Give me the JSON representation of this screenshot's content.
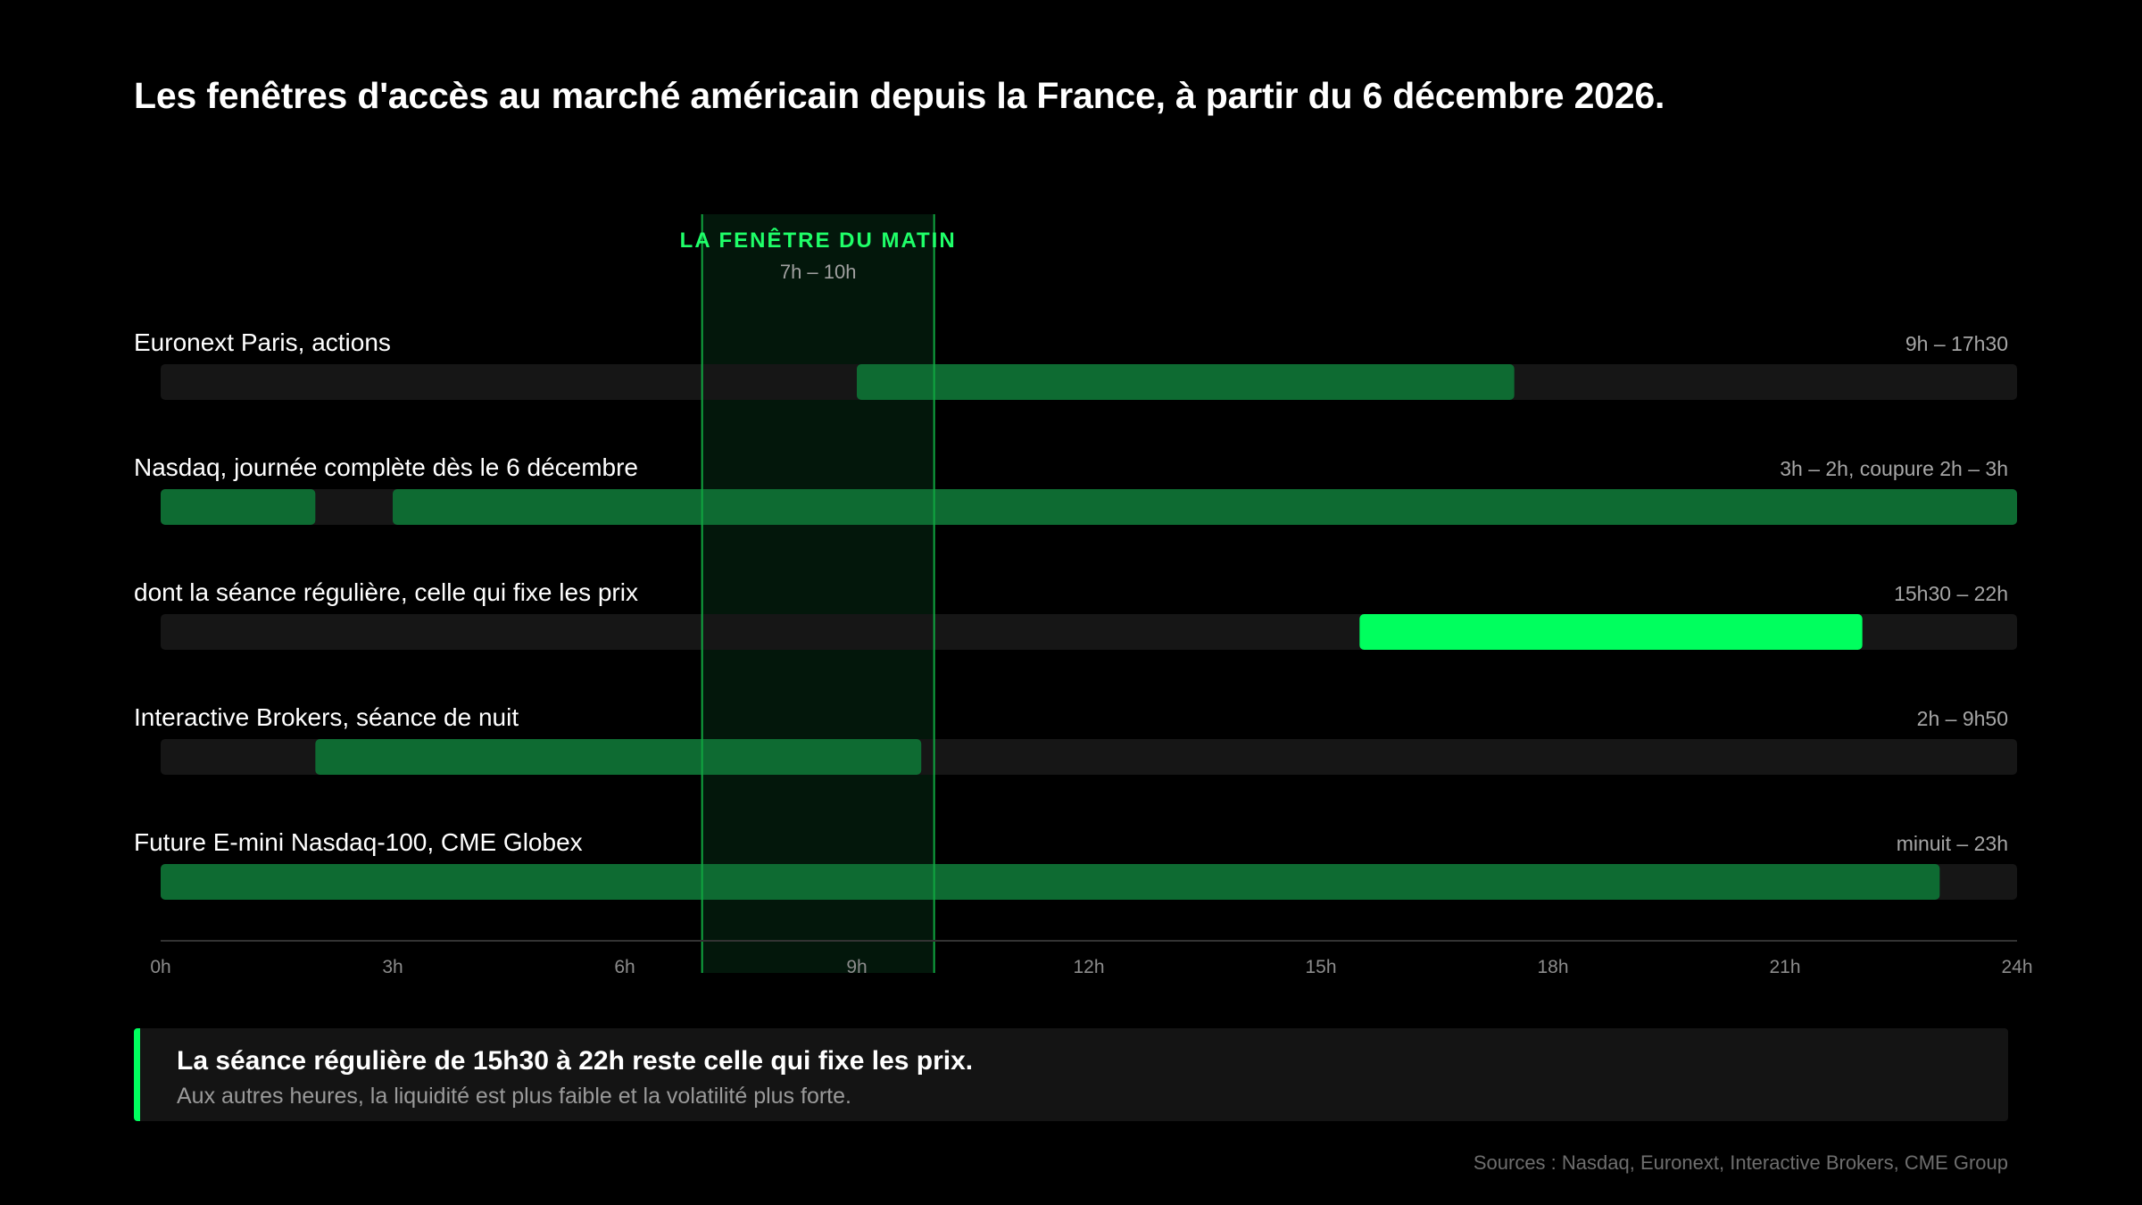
{
  "title": "Les fenêtres d'accès au marché américain depuis la France, à partir du 6 décembre 2026.",
  "colors": {
    "background": "#000000",
    "track": "#161616",
    "bar": "#0e6b32",
    "bar_highlight": "#00ff5e",
    "window_fill": "#03170b",
    "window_line": "#10a640",
    "window_label": "#1fff69",
    "axis": "#333333",
    "tick_text": "#8c8c8c",
    "range_text": "#a6a6a6"
  },
  "chart_data": {
    "type": "gantt",
    "x_unit": "hours",
    "xlim": [
      0,
      24
    ],
    "xticks": [
      0,
      3,
      6,
      9,
      12,
      15,
      18,
      21,
      24
    ],
    "xtick_labels": [
      "0h",
      "3h",
      "6h",
      "9h",
      "12h",
      "15h",
      "18h",
      "21h",
      "24h"
    ],
    "highlight_window": {
      "label": "LA FENÊTRE DU MATIN",
      "sublabel": "7h – 10h",
      "start": 7,
      "end": 10
    },
    "rows": [
      {
        "label": "Euronext Paris, actions",
        "range_text": "9h – 17h30",
        "segments": [
          [
            9,
            17.5
          ]
        ],
        "highlight": false
      },
      {
        "label": "Nasdaq, journée complète dès le 6 décembre",
        "range_text": "3h – 2h, coupure 2h – 3h",
        "segments": [
          [
            0,
            2
          ],
          [
            3,
            24
          ]
        ],
        "highlight": false
      },
      {
        "label": "dont la séance régulière, celle qui fixe les prix",
        "range_text": "15h30 – 22h",
        "segments": [
          [
            15.5,
            22
          ]
        ],
        "highlight": true
      },
      {
        "label": "Interactive Brokers, séance de nuit",
        "range_text": "2h – 9h50",
        "segments": [
          [
            2,
            9.8333
          ]
        ],
        "highlight": false
      },
      {
        "label": "Future E-mini Nasdaq-100, CME Globex",
        "range_text": "minuit – 23h",
        "segments": [
          [
            0,
            23
          ]
        ],
        "highlight": false
      }
    ]
  },
  "callout": {
    "headline": "La séance régulière de 15h30 à 22h reste celle qui fixe les prix.",
    "sub": "Aux autres heures, la liquidité est plus faible et la volatilité plus forte."
  },
  "sources": "Sources : Nasdaq, Euronext, Interactive Brokers, CME Group"
}
